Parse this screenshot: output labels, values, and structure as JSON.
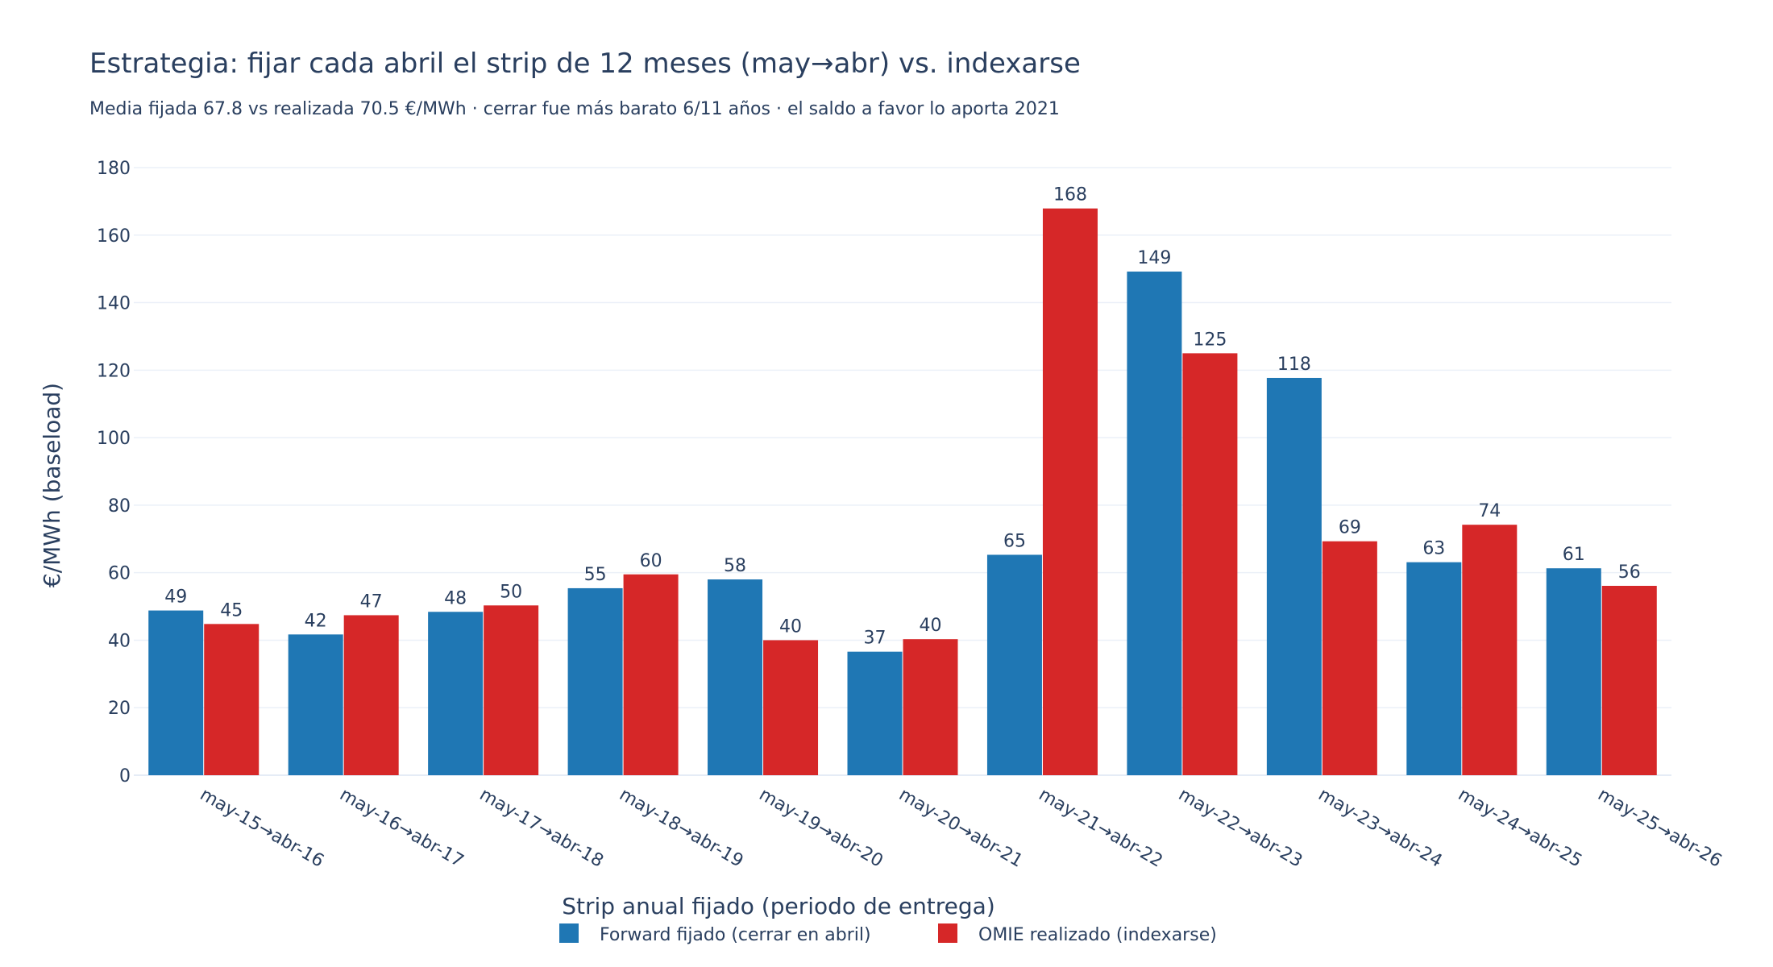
{
  "chart_data": {
    "type": "bar",
    "title": "Estrategia: fijar cada abril el strip de 12 meses (may→abr) vs. indexarse",
    "subtitle": "Media fijada 67.8 vs realizada 70.5 €/MWh · cerrar fue más barato 6/11 años · el saldo a favor lo aporta 2021",
    "xlabel": "Strip anual fijado (periodo de entrega)",
    "ylabel": "€/MWh (baseload)",
    "ylim": [
      0,
      180
    ],
    "yticks": [
      0,
      20,
      40,
      60,
      80,
      100,
      120,
      140,
      160,
      180
    ],
    "grid": true,
    "legend_position": "bottom-center",
    "categories": [
      "may-15→abr-16",
      "may-16→abr-17",
      "may-17→abr-18",
      "may-18→abr-19",
      "may-19→abr-20",
      "may-20→abr-21",
      "may-21→abr-22",
      "may-22→abr-23",
      "may-23→abr-24",
      "may-24→abr-25",
      "may-25→abr-26"
    ],
    "series": [
      {
        "name": "Forward fijado (cerrar en abril)",
        "color": "#1f77b4",
        "values": [
          48.8,
          41.7,
          48.4,
          55.4,
          58.0,
          36.6,
          65.3,
          149.2,
          117.7,
          63.1,
          61.3
        ],
        "labels": [
          "49",
          "42",
          "48",
          "55",
          "58",
          "37",
          "65",
          "149",
          "118",
          "63",
          "61"
        ]
      },
      {
        "name": "OMIE realizado (indexarse)",
        "color": "#d62728",
        "values": [
          44.8,
          47.4,
          50.3,
          59.5,
          40.0,
          40.3,
          167.9,
          125.0,
          69.3,
          74.2,
          56.1
        ],
        "labels": [
          "45",
          "47",
          "50",
          "60",
          "40",
          "40",
          "168",
          "125",
          "69",
          "74",
          "56"
        ]
      }
    ]
  }
}
